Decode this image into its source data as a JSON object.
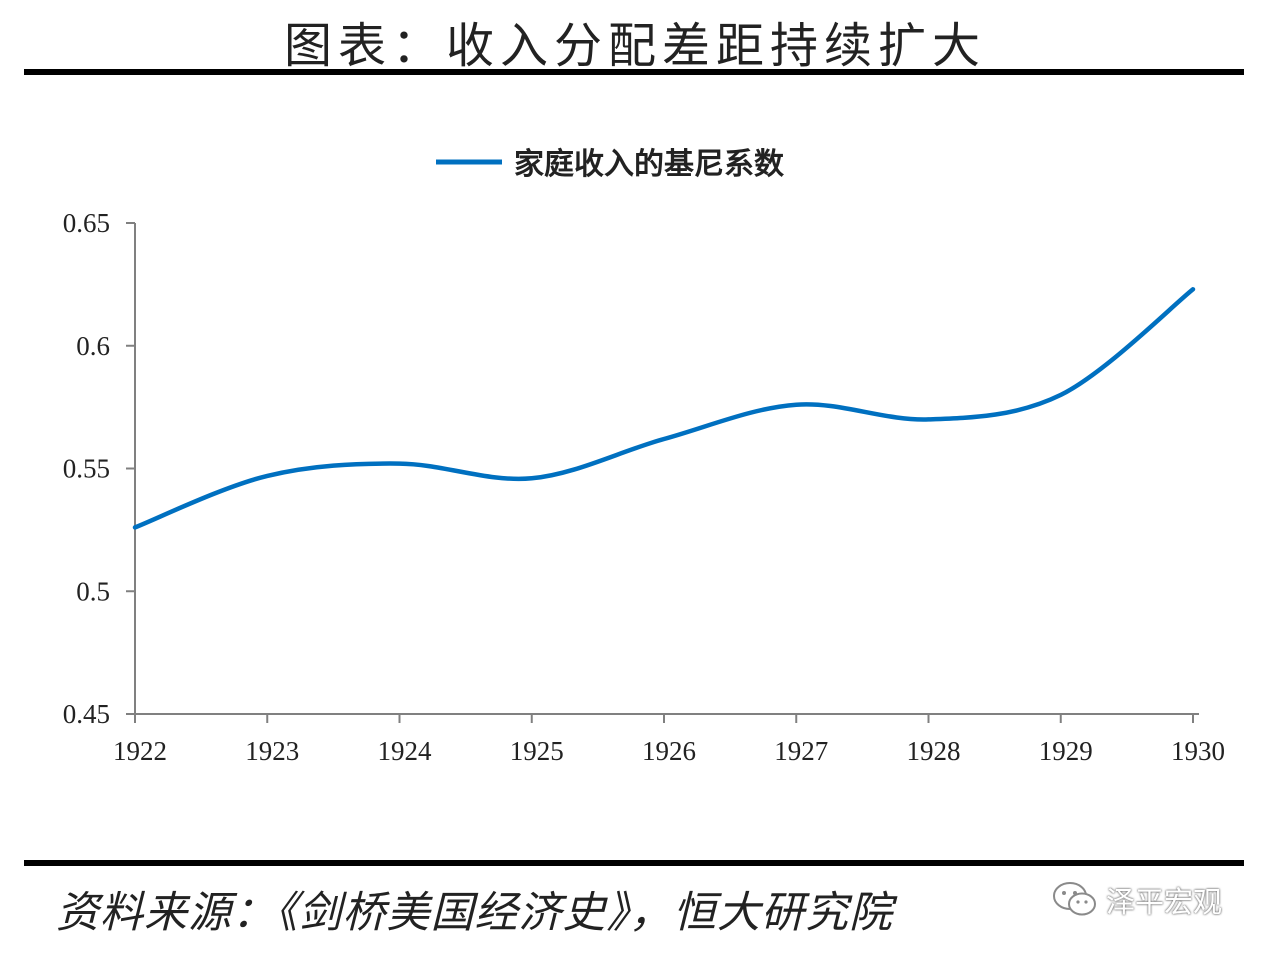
{
  "header": {
    "title": "图表：收入分配差距持续扩大"
  },
  "footer": {
    "source": "资料来源：《剑桥美国经济史》，恒大研究院",
    "watermark": "泽平宏观"
  },
  "colors": {
    "series": "#0070c0",
    "axis": "#808080",
    "rule": "#000000"
  },
  "chart_data": {
    "type": "line",
    "x": [
      "1922",
      "1923",
      "1924",
      "1925",
      "1926",
      "1927",
      "1928",
      "1929",
      "1930"
    ],
    "series": [
      {
        "name": "家庭收入的基尼系数",
        "values": [
          0.526,
          0.547,
          0.552,
          0.546,
          0.562,
          0.576,
          0.57,
          0.58,
          0.623
        ]
      }
    ],
    "y_ticks": [
      "0.45",
      "0.5",
      "0.55",
      "0.6",
      "0.65"
    ],
    "ylim": [
      0.45,
      0.65
    ],
    "smooth": true,
    "grid": false,
    "legend_position": "top-center"
  }
}
